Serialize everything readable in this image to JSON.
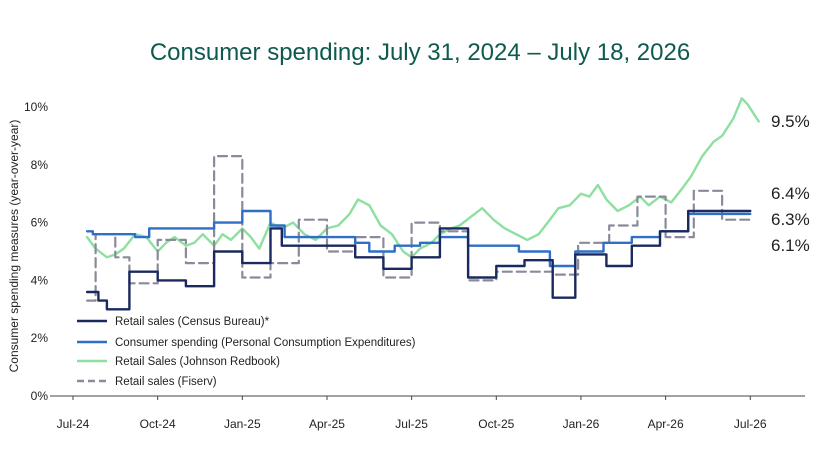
{
  "chart_data": {
    "type": "line",
    "title": "Consumer spending: July 31, 2024 – July 18, 2026",
    "ylabel": "Consumer spending measures (year-over-year)",
    "xlabel": "",
    "xlim": [
      0,
      24.6
    ],
    "ylim": [
      0,
      10.6
    ],
    "x_ticks": [
      {
        "x": 0,
        "label": "Jul-24"
      },
      {
        "x": 3,
        "label": "Oct-24"
      },
      {
        "x": 6,
        "label": "Jan-25"
      },
      {
        "x": 9,
        "label": "Apr-25"
      },
      {
        "x": 12,
        "label": "Jul-25"
      },
      {
        "x": 15,
        "label": "Oct-25"
      },
      {
        "x": 18,
        "label": "Jan-26"
      },
      {
        "x": 21,
        "label": "Apr-26"
      },
      {
        "x": 24,
        "label": "Jul-26"
      }
    ],
    "y_ticks": [
      {
        "y": 0,
        "label": "0%"
      },
      {
        "y": 2,
        "label": "2%"
      },
      {
        "y": 4,
        "label": "4%"
      },
      {
        "y": 6,
        "label": "6%"
      },
      {
        "y": 8,
        "label": "8%"
      },
      {
        "y": 10,
        "label": "10%"
      }
    ],
    "legend_position": "bottom-left",
    "series": [
      {
        "name": "Retail sales (Census Bureau)*",
        "color": "#1b2a5e",
        "style": "solid",
        "step": true,
        "end_label": "6.4%",
        "points": [
          [
            0.5,
            3.6
          ],
          [
            0.9,
            3.6
          ],
          [
            0.9,
            3.3
          ],
          [
            1.2,
            3.3
          ],
          [
            1.2,
            3.0
          ],
          [
            2.0,
            3.0
          ],
          [
            2.0,
            4.3
          ],
          [
            3.0,
            4.3
          ],
          [
            3.0,
            4.0
          ],
          [
            4.0,
            4.0
          ],
          [
            4.0,
            3.8
          ],
          [
            5.0,
            3.8
          ],
          [
            5.0,
            5.0
          ],
          [
            6.0,
            5.0
          ],
          [
            6.0,
            4.6
          ],
          [
            7.0,
            4.6
          ],
          [
            7.0,
            5.8
          ],
          [
            7.4,
            5.8
          ],
          [
            7.4,
            5.2
          ],
          [
            10.0,
            5.2
          ],
          [
            10.0,
            4.8
          ],
          [
            11.0,
            4.8
          ],
          [
            11.0,
            4.4
          ],
          [
            12.0,
            4.4
          ],
          [
            12.0,
            4.8
          ],
          [
            13.0,
            4.8
          ],
          [
            13.0,
            5.8
          ],
          [
            14.0,
            5.8
          ],
          [
            14.0,
            4.1
          ],
          [
            15.0,
            4.1
          ],
          [
            15.0,
            4.5
          ],
          [
            16.0,
            4.5
          ],
          [
            16.0,
            4.7
          ],
          [
            17.0,
            4.7
          ],
          [
            17.0,
            3.4
          ],
          [
            17.8,
            3.4
          ],
          [
            17.8,
            4.9
          ],
          [
            18.9,
            4.9
          ],
          [
            18.9,
            4.5
          ],
          [
            19.8,
            4.5
          ],
          [
            19.8,
            5.2
          ],
          [
            20.8,
            5.2
          ],
          [
            20.8,
            5.7
          ],
          [
            21.8,
            5.7
          ],
          [
            21.8,
            6.4
          ],
          [
            24.0,
            6.4
          ]
        ]
      },
      {
        "name": "Consumer spending (Personal Consumption Expenditures)",
        "color": "#2f6fc6",
        "style": "solid",
        "step": true,
        "end_label": "6.3%",
        "points": [
          [
            0.5,
            5.7
          ],
          [
            0.7,
            5.7
          ],
          [
            0.7,
            5.6
          ],
          [
            2.2,
            5.6
          ],
          [
            2.2,
            5.5
          ],
          [
            2.7,
            5.5
          ],
          [
            2.7,
            5.8
          ],
          [
            5.0,
            5.8
          ],
          [
            5.0,
            6.0
          ],
          [
            6.0,
            6.0
          ],
          [
            6.0,
            6.4
          ],
          [
            7.0,
            6.4
          ],
          [
            7.0,
            5.9
          ],
          [
            7.5,
            5.9
          ],
          [
            7.5,
            5.5
          ],
          [
            10.0,
            5.5
          ],
          [
            10.0,
            5.3
          ],
          [
            10.5,
            5.3
          ],
          [
            10.5,
            5.0
          ],
          [
            11.4,
            5.0
          ],
          [
            11.4,
            5.2
          ],
          [
            12.3,
            5.2
          ],
          [
            12.3,
            5.3
          ],
          [
            13.0,
            5.3
          ],
          [
            13.0,
            5.5
          ],
          [
            14.0,
            5.5
          ],
          [
            14.0,
            5.2
          ],
          [
            15.8,
            5.2
          ],
          [
            15.8,
            5.0
          ],
          [
            16.9,
            5.0
          ],
          [
            16.9,
            4.5
          ],
          [
            17.8,
            4.5
          ],
          [
            17.8,
            5.0
          ],
          [
            18.8,
            5.0
          ],
          [
            18.8,
            5.3
          ],
          [
            19.8,
            5.3
          ],
          [
            19.8,
            5.5
          ],
          [
            20.8,
            5.5
          ],
          [
            20.8,
            5.7
          ],
          [
            21.8,
            5.7
          ],
          [
            21.8,
            6.3
          ],
          [
            24.0,
            6.3
          ]
        ]
      },
      {
        "name": "Retail Sales (Johnson Redbook)",
        "color": "#8de0a0",
        "style": "solid",
        "step": false,
        "end_label": "9.5%",
        "points": [
          [
            0.5,
            5.5
          ],
          [
            0.8,
            5.1
          ],
          [
            1.2,
            4.8
          ],
          [
            1.5,
            4.9
          ],
          [
            1.8,
            5.1
          ],
          [
            2.2,
            5.6
          ],
          [
            2.6,
            5.5
          ],
          [
            3.0,
            5.0
          ],
          [
            3.3,
            5.3
          ],
          [
            3.6,
            5.5
          ],
          [
            4.0,
            5.2
          ],
          [
            4.3,
            5.3
          ],
          [
            4.6,
            5.6
          ],
          [
            5.0,
            5.2
          ],
          [
            5.3,
            5.6
          ],
          [
            5.6,
            5.4
          ],
          [
            6.0,
            5.8
          ],
          [
            6.3,
            5.5
          ],
          [
            6.6,
            5.1
          ],
          [
            7.0,
            6.0
          ],
          [
            7.4,
            5.8
          ],
          [
            7.8,
            6.0
          ],
          [
            8.2,
            5.6
          ],
          [
            8.6,
            5.4
          ],
          [
            9.0,
            5.8
          ],
          [
            9.4,
            5.9
          ],
          [
            9.8,
            6.3
          ],
          [
            10.1,
            6.8
          ],
          [
            10.5,
            6.6
          ],
          [
            10.9,
            5.9
          ],
          [
            11.3,
            5.6
          ],
          [
            11.7,
            5.0
          ],
          [
            12.0,
            4.8
          ],
          [
            12.3,
            5.1
          ],
          [
            12.7,
            5.3
          ],
          [
            13.0,
            5.6
          ],
          [
            13.4,
            5.8
          ],
          [
            13.7,
            5.9
          ],
          [
            14.1,
            6.2
          ],
          [
            14.5,
            6.5
          ],
          [
            14.9,
            6.1
          ],
          [
            15.3,
            5.8
          ],
          [
            15.7,
            5.6
          ],
          [
            16.1,
            5.4
          ],
          [
            16.5,
            5.6
          ],
          [
            16.9,
            6.1
          ],
          [
            17.2,
            6.5
          ],
          [
            17.6,
            6.6
          ],
          [
            18.0,
            7.0
          ],
          [
            18.3,
            6.9
          ],
          [
            18.6,
            7.3
          ],
          [
            18.9,
            6.8
          ],
          [
            19.3,
            6.4
          ],
          [
            19.7,
            6.6
          ],
          [
            20.1,
            6.9
          ],
          [
            20.4,
            6.6
          ],
          [
            20.8,
            6.9
          ],
          [
            21.2,
            6.7
          ],
          [
            21.6,
            7.2
          ],
          [
            21.9,
            7.6
          ],
          [
            22.3,
            8.3
          ],
          [
            22.7,
            8.8
          ],
          [
            23.0,
            9.0
          ],
          [
            23.4,
            9.6
          ],
          [
            23.7,
            10.3
          ],
          [
            23.9,
            10.1
          ],
          [
            24.1,
            9.8
          ],
          [
            24.3,
            9.5
          ]
        ]
      },
      {
        "name": "Retail sales (Fiserv)",
        "color": "#8a8a9a",
        "style": "dashed",
        "step": true,
        "end_label": "6.1%",
        "points": [
          [
            0.5,
            3.3
          ],
          [
            0.8,
            3.3
          ],
          [
            0.8,
            5.6
          ],
          [
            1.5,
            5.6
          ],
          [
            1.5,
            4.8
          ],
          [
            2.0,
            4.8
          ],
          [
            2.0,
            3.9
          ],
          [
            3.0,
            3.9
          ],
          [
            3.0,
            5.4
          ],
          [
            4.0,
            5.4
          ],
          [
            4.0,
            4.6
          ],
          [
            5.0,
            4.6
          ],
          [
            5.0,
            8.3
          ],
          [
            6.0,
            8.3
          ],
          [
            6.0,
            4.1
          ],
          [
            7.0,
            4.1
          ],
          [
            7.0,
            4.6
          ],
          [
            8.0,
            4.6
          ],
          [
            8.0,
            6.1
          ],
          [
            9.0,
            6.1
          ],
          [
            9.0,
            5.0
          ],
          [
            10.0,
            5.0
          ],
          [
            10.0,
            5.5
          ],
          [
            11.0,
            5.5
          ],
          [
            11.0,
            4.1
          ],
          [
            12.0,
            4.1
          ],
          [
            12.0,
            6.0
          ],
          [
            13.0,
            6.0
          ],
          [
            13.0,
            5.7
          ],
          [
            14.0,
            5.7
          ],
          [
            14.0,
            4.0
          ],
          [
            15.0,
            4.0
          ],
          [
            15.0,
            4.3
          ],
          [
            17.0,
            4.3
          ],
          [
            17.0,
            4.2
          ],
          [
            17.9,
            4.2
          ],
          [
            17.9,
            5.3
          ],
          [
            19.0,
            5.3
          ],
          [
            19.0,
            5.9
          ],
          [
            20.0,
            5.9
          ],
          [
            20.0,
            6.9
          ],
          [
            21.0,
            6.9
          ],
          [
            21.0,
            5.5
          ],
          [
            22.0,
            5.5
          ],
          [
            22.0,
            7.1
          ],
          [
            23.0,
            7.1
          ],
          [
            23.0,
            6.1
          ],
          [
            24.0,
            6.1
          ]
        ]
      }
    ]
  }
}
